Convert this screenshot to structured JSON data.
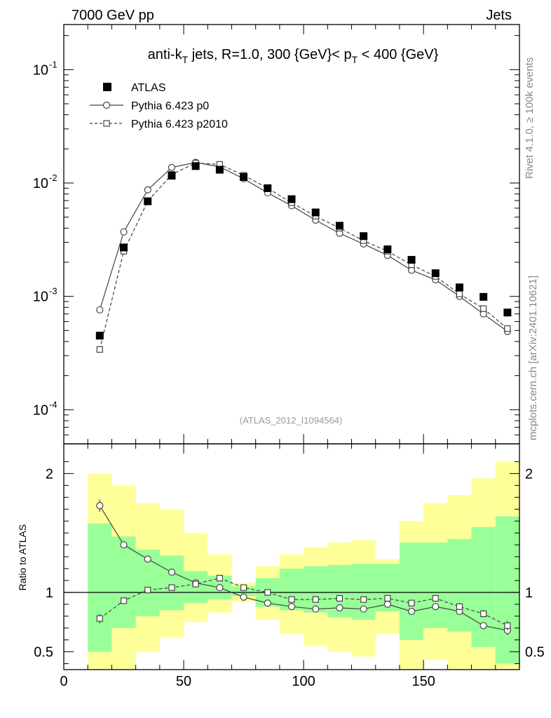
{
  "header": {
    "left": "7000 GeV pp",
    "right": "Jets"
  },
  "side_text": {
    "rivet": "Rivet 4.1.0, ≥ 100k events",
    "mcplots": "mcplots.cern.ch [arXiv:2401.10621]"
  },
  "title_parts": {
    "a": "anti-k",
    "a_sub": "T",
    "b": " jets, R=1.0, 300 {GeV}< p",
    "b_sub": "T",
    "c": " < 400 {GeV}"
  },
  "analysis_label": "(ATLAS_2012_I1094564)",
  "legend": {
    "data": "ATLAS",
    "mc1": "Pythia 6.423 p0",
    "mc2": "Pythia 6.423 p2010"
  },
  "ratio_ylabel": "Ratio to ATLAS",
  "colors": {
    "band_outer": "#ffff99",
    "band_inner": "#99ff99",
    "data": "#000000",
    "mc": "#444444"
  },
  "chart_data": [
    {
      "type": "scatter",
      "name": "main",
      "yscale": "log",
      "xlim": [
        0,
        190
      ],
      "ylim": [
        5e-05,
        0.25
      ],
      "yticks": [
        {
          "v": 0.0001,
          "base": "10",
          "exp": "-4"
        },
        {
          "v": 0.001,
          "base": "10",
          "exp": "-3"
        },
        {
          "v": 0.01,
          "base": "10",
          "exp": "-2"
        },
        {
          "v": 0.1,
          "base": "10",
          "exp": "-1"
        }
      ],
      "x": [
        15,
        25,
        35,
        45,
        55,
        65,
        75,
        85,
        95,
        105,
        115,
        125,
        135,
        145,
        155,
        165,
        175,
        185
      ],
      "series": [
        {
          "name": "ATLAS",
          "values": [
            0.00045,
            0.0027,
            0.0069,
            0.0116,
            0.0141,
            0.0131,
            0.0113,
            0.009,
            0.0072,
            0.0055,
            0.0042,
            0.0034,
            0.0026,
            0.0021,
            0.0016,
            0.0012,
            0.00099,
            0.00072
          ]
        },
        {
          "name": "Pythia 6.423 p0",
          "values": [
            0.00076,
            0.0037,
            0.0087,
            0.0137,
            0.0152,
            0.0139,
            0.0109,
            0.0082,
            0.0063,
            0.0047,
            0.0036,
            0.0029,
            0.0023,
            0.0017,
            0.0014,
            0.001,
            0.0007,
            0.00049
          ]
        },
        {
          "name": "Pythia 6.423 p2010",
          "values": [
            0.00034,
            0.0025,
            0.0069,
            0.0119,
            0.015,
            0.0146,
            0.0117,
            0.009,
            0.0067,
            0.0051,
            0.004,
            0.0031,
            0.0025,
            0.0019,
            0.0015,
            0.00105,
            0.00078,
            0.00052
          ]
        }
      ]
    },
    {
      "type": "line",
      "name": "ratio",
      "xlim": [
        0,
        190
      ],
      "ylim": [
        0.35,
        2.25
      ],
      "yticks": [
        0.5,
        1,
        2
      ],
      "yticklabels": [
        "0.5",
        "1",
        "2"
      ],
      "xticks": [
        0,
        50,
        100,
        150
      ],
      "xticklabels": [
        "0",
        "50",
        "100",
        "150"
      ],
      "bins": [
        [
          10,
          20
        ],
        [
          20,
          30
        ],
        [
          30,
          40
        ],
        [
          40,
          50
        ],
        [
          50,
          60
        ],
        [
          60,
          70
        ],
        [
          70,
          80
        ],
        [
          80,
          90
        ],
        [
          90,
          100
        ],
        [
          100,
          110
        ],
        [
          110,
          120
        ],
        [
          120,
          130
        ],
        [
          130,
          140
        ],
        [
          140,
          150
        ],
        [
          150,
          160
        ],
        [
          160,
          170
        ],
        [
          170,
          180
        ],
        [
          180,
          190
        ]
      ],
      "band_outer": [
        [
          0.2,
          2.0
        ],
        [
          0.35,
          1.9
        ],
        [
          0.5,
          1.75
        ],
        [
          0.62,
          1.7
        ],
        [
          0.75,
          1.5
        ],
        [
          0.83,
          1.32
        ],
        [
          0.92,
          1.08
        ],
        [
          0.77,
          1.22
        ],
        [
          0.65,
          1.32
        ],
        [
          0.55,
          1.38
        ],
        [
          0.5,
          1.42
        ],
        [
          0.46,
          1.44
        ],
        [
          0.65,
          1.28
        ],
        [
          0.15,
          1.6
        ],
        [
          0.43,
          1.75
        ],
        [
          0.25,
          1.82
        ],
        [
          0.3,
          1.96
        ],
        [
          0.15,
          2.1
        ]
      ],
      "band_inner": [
        [
          0.5,
          1.58
        ],
        [
          0.7,
          1.47
        ],
        [
          0.8,
          1.36
        ],
        [
          0.85,
          1.31
        ],
        [
          0.91,
          1.18
        ],
        [
          0.94,
          1.14
        ],
        [
          0.97,
          1.05
        ],
        [
          0.88,
          1.12
        ],
        [
          0.85,
          1.2
        ],
        [
          0.83,
          1.22
        ],
        [
          0.79,
          1.23
        ],
        [
          0.77,
          1.24
        ],
        [
          0.84,
          1.24
        ],
        [
          0.6,
          1.42
        ],
        [
          0.7,
          1.42
        ],
        [
          0.67,
          1.45
        ],
        [
          0.54,
          1.55
        ],
        [
          0.4,
          1.64
        ]
      ],
      "series": [
        {
          "name": "Pythia 6.423 p0",
          "values": [
            1.73,
            1.4,
            1.28,
            1.17,
            1.08,
            1.04,
            0.96,
            0.91,
            0.88,
            0.86,
            0.87,
            0.86,
            0.9,
            0.84,
            0.88,
            0.84,
            0.72,
            0.68
          ],
          "errors": [
            0.05,
            0.02,
            0.02,
            0.01,
            0.01,
            0.01,
            0.01,
            0.01,
            0.01,
            0.01,
            0.01,
            0.01,
            0.01,
            0.02,
            0.02,
            0.03,
            0.03,
            0.04
          ]
        },
        {
          "name": "Pythia 6.423 p2010",
          "values": [
            0.78,
            0.93,
            1.02,
            1.04,
            1.07,
            1.12,
            1.04,
            1.0,
            0.94,
            0.94,
            0.95,
            0.94,
            0.95,
            0.91,
            0.95,
            0.88,
            0.82,
            0.72
          ],
          "errors": [
            0.04,
            0.02,
            0.02,
            0.01,
            0.01,
            0.01,
            0.01,
            0.01,
            0.01,
            0.01,
            0.01,
            0.01,
            0.01,
            0.02,
            0.02,
            0.03,
            0.03,
            0.04
          ]
        }
      ]
    }
  ]
}
